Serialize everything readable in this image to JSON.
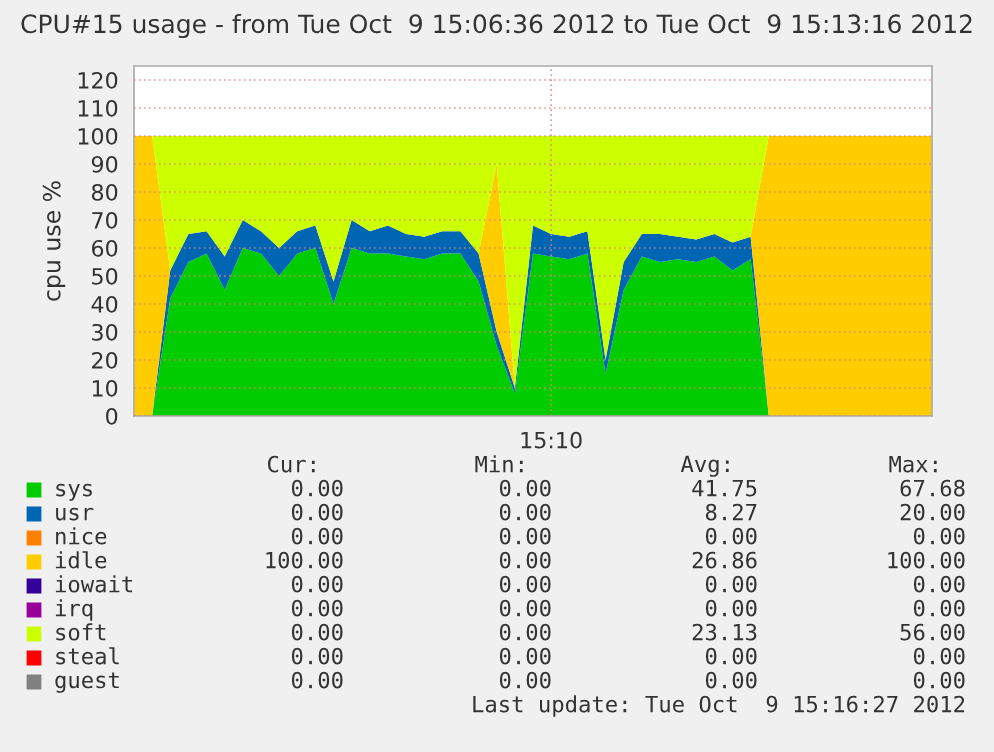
{
  "chart_data": {
    "type": "area",
    "stacked": true,
    "title": "CPU#15 usage - from Tue Oct  9 15:06:36 2012 to Tue Oct  9 15:13:16 2012",
    "ylabel": "cpu use %",
    "categories": [
      null,
      null,
      null,
      null,
      null,
      null,
      null,
      null,
      null,
      null,
      null,
      null,
      null,
      null,
      null,
      null,
      null,
      null,
      null,
      null,
      null,
      null,
      null,
      "15:10",
      null,
      null,
      null,
      null,
      null,
      null,
      null,
      null,
      null,
      null,
      null,
      null,
      null,
      null,
      null,
      null,
      null,
      null,
      null,
      null,
      null
    ],
    "series": [
      {
        "name": "sys",
        "color": "#00cc00",
        "values": [
          0,
          0,
          42,
          55,
          58,
          45,
          60,
          58,
          50,
          58,
          60,
          40,
          60,
          58,
          58,
          57,
          56,
          58,
          58,
          48,
          25,
          8,
          58,
          57,
          56,
          58,
          15,
          45,
          57,
          55,
          56,
          55,
          57,
          52,
          56,
          0,
          0,
          0,
          0,
          0,
          0,
          0,
          0,
          0,
          0
        ]
      },
      {
        "name": "usr",
        "color": "#0066b3",
        "values": [
          0,
          0,
          10,
          10,
          8,
          12,
          10,
          8,
          10,
          8,
          8,
          8,
          10,
          8,
          10,
          8,
          8,
          8,
          8,
          10,
          5,
          2,
          10,
          8,
          8,
          8,
          5,
          10,
          8,
          10,
          8,
          8,
          8,
          10,
          8,
          0,
          0,
          0,
          0,
          0,
          0,
          0,
          0,
          0,
          0
        ]
      },
      {
        "name": "nice",
        "color": "#ff8000",
        "values": [
          null,
          null,
          null,
          null,
          null,
          null,
          null,
          null,
          null,
          null,
          null,
          null,
          null,
          null,
          null,
          null,
          null,
          null,
          null,
          null,
          null,
          null,
          null,
          null,
          null,
          null,
          null,
          null,
          null,
          null,
          null,
          null,
          null,
          null,
          null,
          null,
          null,
          null,
          null,
          null,
          null,
          null,
          null,
          null,
          null
        ]
      },
      {
        "name": "idle",
        "color": "#ffcc00",
        "values": [
          100,
          100,
          0,
          0,
          0,
          0,
          0,
          0,
          0,
          0,
          0,
          0,
          0,
          0,
          0,
          0,
          0,
          0,
          0,
          0,
          60,
          0,
          0,
          0,
          0,
          0,
          0,
          0,
          0,
          0,
          0,
          0,
          0,
          0,
          0,
          100,
          100,
          100,
          100,
          100,
          100,
          100,
          100,
          100,
          100
        ]
      },
      {
        "name": "iowait",
        "color": "#330099",
        "values": [
          null,
          null,
          null,
          null,
          null,
          null,
          null,
          null,
          null,
          null,
          null,
          null,
          null,
          null,
          null,
          null,
          null,
          null,
          null,
          null,
          null,
          null,
          null,
          null,
          null,
          null,
          null,
          null,
          null,
          null,
          null,
          null,
          null,
          null,
          null,
          null,
          null,
          null,
          null,
          null,
          null,
          null,
          null,
          null,
          null
        ]
      },
      {
        "name": "irq",
        "color": "#990099",
        "values": [
          null,
          null,
          null,
          null,
          null,
          null,
          null,
          null,
          null,
          null,
          null,
          null,
          null,
          null,
          null,
          null,
          null,
          null,
          null,
          null,
          null,
          null,
          null,
          null,
          null,
          null,
          null,
          null,
          null,
          null,
          null,
          null,
          null,
          null,
          null,
          null,
          null,
          null,
          null,
          null,
          null,
          null,
          null,
          null,
          null
        ]
      },
      {
        "name": "soft",
        "color": "#ccff00",
        "values": [
          0,
          0,
          48,
          35,
          34,
          43,
          30,
          34,
          40,
          34,
          32,
          52,
          30,
          34,
          32,
          35,
          36,
          34,
          34,
          42,
          10,
          90,
          32,
          35,
          36,
          34,
          80,
          45,
          35,
          35,
          36,
          37,
          35,
          38,
          36,
          0,
          0,
          0,
          0,
          0,
          0,
          0,
          0,
          0,
          0
        ]
      },
      {
        "name": "steal",
        "color": "#ff0000",
        "values": [
          null,
          null,
          null,
          null,
          null,
          null,
          null,
          null,
          null,
          null,
          null,
          null,
          null,
          null,
          null,
          null,
          null,
          null,
          null,
          null,
          null,
          null,
          null,
          null,
          null,
          null,
          null,
          null,
          null,
          null,
          null,
          null,
          null,
          null,
          null,
          null,
          null,
          null,
          null,
          null,
          null,
          null,
          null,
          null,
          null
        ]
      },
      {
        "name": "guest",
        "color": "#808080",
        "values": [
          null,
          null,
          null,
          null,
          null,
          null,
          null,
          null,
          null,
          null,
          null,
          null,
          null,
          null,
          null,
          null,
          null,
          null,
          null,
          null,
          null,
          null,
          null,
          null,
          null,
          null,
          null,
          null,
          null,
          null,
          null,
          null,
          null,
          null,
          null,
          null,
          null,
          null,
          null,
          null,
          null,
          null,
          null,
          null,
          null
        ]
      }
    ],
    "ylim": [
      0,
      125
    ],
    "yticks": [
      0,
      10,
      20,
      30,
      40,
      50,
      60,
      70,
      80,
      90,
      100,
      110,
      120
    ],
    "grid": true,
    "legend": "bottom",
    "annotations": [
      "Cur:",
      "Min:",
      "Avg:",
      "Max:",
      "0.00",
      "0.00",
      "41.75",
      "67.68",
      "0.00",
      "0.00",
      "8.27",
      "20.00",
      "0.00",
      "0.00",
      "0.00",
      "0.00",
      "100.00",
      "0.00",
      "26.86",
      "100.00",
      "0.00",
      "0.00",
      "0.00",
      "0.00",
      "0.00",
      "0.00",
      "0.00",
      "0.00",
      "0.00",
      "0.00",
      "23.13",
      "56.00",
      "0.00",
      "0.00",
      "0.00",
      "0.00",
      "0.00",
      "0.00",
      "0.00",
      "0.00",
      "Last update: Tue Oct  9 15:16:27 2012"
    ]
  }
}
